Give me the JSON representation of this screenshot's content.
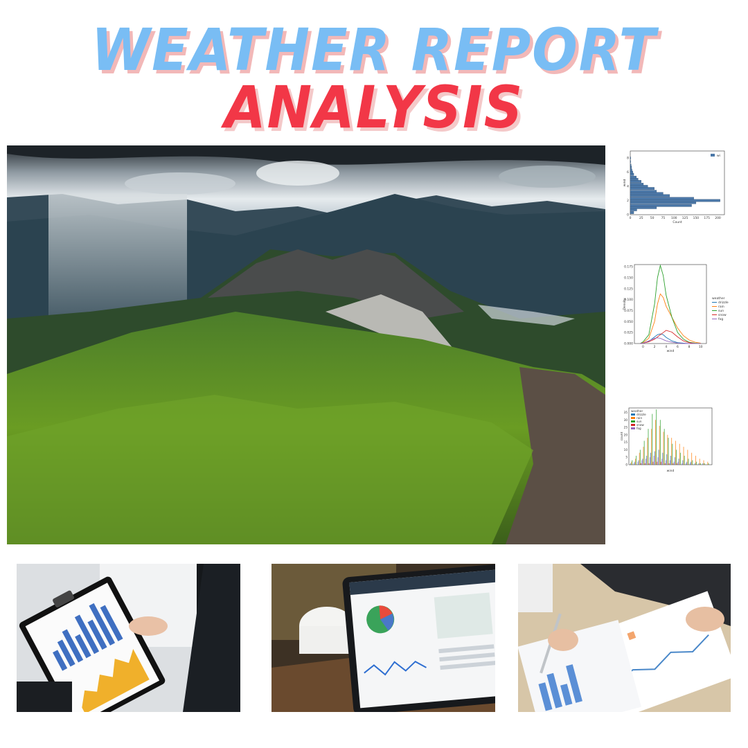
{
  "header": {
    "line1": "WEATHER REPORT",
    "line2": "ANALYSIS"
  },
  "colors": {
    "title_blue": "#79bdf4",
    "title_red": "#f23747",
    "drizzle": "#1f77b4",
    "rain": "#ff7f0e",
    "sun": "#2ca02c",
    "snow": "#d62728",
    "fog": "#9467bd"
  },
  "chart_data": [
    {
      "type": "bar",
      "orientation": "horizontal",
      "xlabel": "Count",
      "ylabel": "wind",
      "legend": [
        "wi"
      ],
      "xticks": [
        "0",
        "25",
        "50",
        "75",
        "100",
        "125",
        "150",
        "175",
        "200"
      ],
      "yticks": [
        "0",
        "2",
        "4",
        "6",
        "8"
      ],
      "bins": [
        0.3,
        0.7,
        1.0,
        1.3,
        1.7,
        2.0,
        2.3,
        2.7,
        3.0,
        3.3,
        3.7,
        4.0,
        4.3,
        4.7,
        5.0,
        5.3,
        5.7,
        6.0,
        6.3,
        6.7,
        7.0,
        7.5,
        8.0
      ],
      "values": [
        8,
        15,
        60,
        140,
        150,
        205,
        145,
        90,
        75,
        60,
        55,
        40,
        30,
        25,
        18,
        14,
        8,
        6,
        4,
        3,
        2,
        1,
        1
      ],
      "xlim": [
        0,
        215
      ],
      "ylim": [
        0,
        9
      ]
    },
    {
      "type": "line",
      "xlabel": "wind",
      "ylabel": "Density",
      "xticks": [
        "0",
        "2",
        "4",
        "6",
        "8",
        "10"
      ],
      "yticks": [
        "0.000",
        "0.025",
        "0.050",
        "0.075",
        "0.100",
        "0.125",
        "0.150",
        "0.175"
      ],
      "legend_title": "weather",
      "xlim": [
        -1.5,
        11
      ],
      "ylim": [
        0,
        0.18
      ],
      "x": [
        -0.5,
        0,
        1,
        2,
        2.5,
        3,
        3.5,
        4,
        5,
        6,
        7,
        8,
        9,
        10
      ],
      "series": [
        {
          "name": "drizzle",
          "values": [
            0,
            0.001,
            0.005,
            0.015,
            0.02,
            0.022,
            0.02,
            0.014,
            0.006,
            0.002,
            0.001,
            0,
            0,
            0
          ]
        },
        {
          "name": "rain",
          "values": [
            0,
            0.002,
            0.012,
            0.05,
            0.09,
            0.113,
            0.105,
            0.085,
            0.06,
            0.035,
            0.018,
            0.008,
            0.003,
            0.001
          ]
        },
        {
          "name": "sun",
          "values": [
            0,
            0.004,
            0.02,
            0.09,
            0.15,
            0.178,
            0.155,
            0.11,
            0.06,
            0.025,
            0.01,
            0.003,
            0.001,
            0
          ]
        },
        {
          "name": "snow",
          "values": [
            0,
            0.001,
            0.004,
            0.01,
            0.015,
            0.02,
            0.025,
            0.03,
            0.026,
            0.015,
            0.006,
            0.002,
            0,
            0
          ]
        },
        {
          "name": "fog",
          "values": [
            0,
            0.001,
            0.006,
            0.012,
            0.013,
            0.012,
            0.009,
            0.006,
            0.003,
            0.001,
            0,
            0,
            0,
            0
          ]
        }
      ]
    },
    {
      "type": "bar",
      "xlabel": "wind",
      "ylabel": "count",
      "yticks": [
        "0",
        "5",
        "10",
        "15",
        "20",
        "25",
        "30",
        "35"
      ],
      "ylim": [
        0,
        38
      ],
      "legend_title": "weather",
      "series": [
        {
          "name": "drizzle",
          "values": [
            1,
            2,
            3,
            4,
            6,
            8,
            9,
            10,
            8,
            7,
            6,
            5,
            4,
            3,
            2,
            2,
            1,
            1,
            1,
            0
          ]
        },
        {
          "name": "rain",
          "values": [
            2,
            4,
            8,
            12,
            18,
            24,
            30,
            26,
            22,
            20,
            18,
            16,
            14,
            12,
            10,
            8,
            6,
            4,
            3,
            2
          ]
        },
        {
          "name": "sun",
          "values": [
            3,
            6,
            10,
            16,
            24,
            34,
            37,
            30,
            24,
            18,
            14,
            10,
            8,
            6,
            4,
            3,
            2,
            1,
            1,
            1
          ]
        },
        {
          "name": "snow",
          "values": [
            0,
            0,
            1,
            1,
            1,
            2,
            2,
            2,
            1,
            1,
            1,
            1,
            0,
            0,
            0,
            0,
            0,
            0,
            0,
            0
          ]
        },
        {
          "name": "fog",
          "values": [
            1,
            2,
            3,
            4,
            5,
            6,
            5,
            4,
            3,
            3,
            2,
            2,
            1,
            1,
            1,
            0,
            0,
            0,
            0,
            0
          ]
        }
      ]
    }
  ]
}
